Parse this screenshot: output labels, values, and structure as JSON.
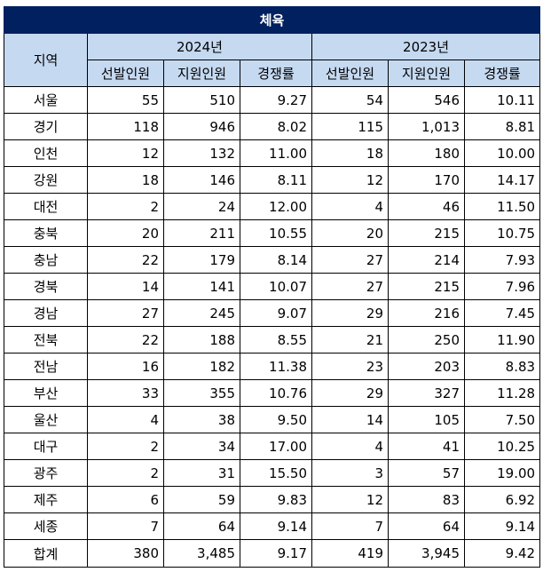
{
  "title": "체육",
  "header": {
    "region_label": "지역",
    "years": [
      "2024년",
      "2023년"
    ],
    "sub_columns": [
      "선발인원",
      "지원인원",
      "경쟁률"
    ]
  },
  "rows": [
    {
      "region": "서울",
      "y2024": [
        "55",
        "510",
        "9.27"
      ],
      "y2023": [
        "54",
        "546",
        "10.11"
      ]
    },
    {
      "region": "경기",
      "y2024": [
        "118",
        "946",
        "8.02"
      ],
      "y2023": [
        "115",
        "1,013",
        "8.81"
      ]
    },
    {
      "region": "인천",
      "y2024": [
        "12",
        "132",
        "11.00"
      ],
      "y2023": [
        "18",
        "180",
        "10.00"
      ]
    },
    {
      "region": "강원",
      "y2024": [
        "18",
        "146",
        "8.11"
      ],
      "y2023": [
        "12",
        "170",
        "14.17"
      ]
    },
    {
      "region": "대전",
      "y2024": [
        "2",
        "24",
        "12.00"
      ],
      "y2023": [
        "4",
        "46",
        "11.50"
      ]
    },
    {
      "region": "충북",
      "y2024": [
        "20",
        "211",
        "10.55"
      ],
      "y2023": [
        "20",
        "215",
        "10.75"
      ]
    },
    {
      "region": "충남",
      "y2024": [
        "22",
        "179",
        "8.14"
      ],
      "y2023": [
        "27",
        "214",
        "7.93"
      ]
    },
    {
      "region": "경북",
      "y2024": [
        "14",
        "141",
        "10.07"
      ],
      "y2023": [
        "27",
        "215",
        "7.96"
      ]
    },
    {
      "region": "경남",
      "y2024": [
        "27",
        "245",
        "9.07"
      ],
      "y2023": [
        "29",
        "216",
        "7.45"
      ]
    },
    {
      "region": "전북",
      "y2024": [
        "22",
        "188",
        "8.55"
      ],
      "y2023": [
        "21",
        "250",
        "11.90"
      ]
    },
    {
      "region": "전남",
      "y2024": [
        "16",
        "182",
        "11.38"
      ],
      "y2023": [
        "23",
        "203",
        "8.83"
      ]
    },
    {
      "region": "부산",
      "y2024": [
        "33",
        "355",
        "10.76"
      ],
      "y2023": [
        "29",
        "327",
        "11.28"
      ]
    },
    {
      "region": "울산",
      "y2024": [
        "4",
        "38",
        "9.50"
      ],
      "y2023": [
        "14",
        "105",
        "7.50"
      ]
    },
    {
      "region": "대구",
      "y2024": [
        "2",
        "34",
        "17.00"
      ],
      "y2023": [
        "4",
        "41",
        "10.25"
      ]
    },
    {
      "region": "광주",
      "y2024": [
        "2",
        "31",
        "15.50"
      ],
      "y2023": [
        "3",
        "57",
        "19.00"
      ]
    },
    {
      "region": "제주",
      "y2024": [
        "6",
        "59",
        "9.83"
      ],
      "y2023": [
        "12",
        "83",
        "6.92"
      ]
    },
    {
      "region": "세종",
      "y2024": [
        "7",
        "64",
        "9.14"
      ],
      "y2023": [
        "7",
        "64",
        "9.14"
      ]
    }
  ],
  "total": {
    "region": "합계",
    "y2024": [
      "380",
      "3,485",
      "9.17"
    ],
    "y2023": [
      "419",
      "3,945",
      "9.42"
    ]
  },
  "colors": {
    "title_bg": "#002060",
    "header_bg": "#c5d9f1"
  }
}
